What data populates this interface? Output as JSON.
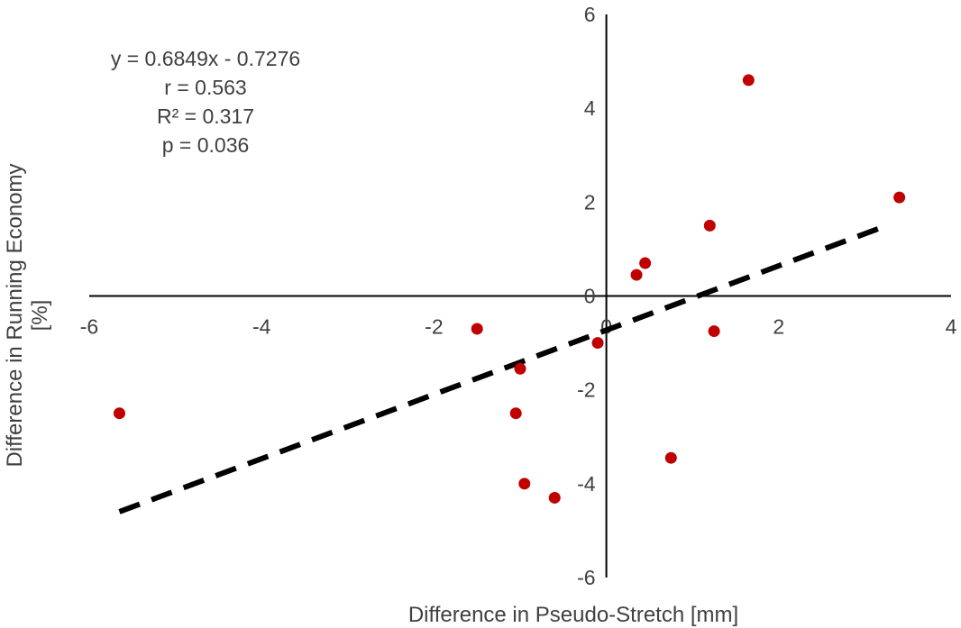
{
  "chart_data": {
    "type": "scatter",
    "title": "",
    "xlabel": "Difference in Pseudo-Stretch [mm]",
    "ylabel": "Difference in Running Economy [%]",
    "ylabel_lines": [
      "Difference in Running Economy",
      "[%]"
    ],
    "xlim": [
      -6,
      4
    ],
    "ylim": [
      -6,
      6
    ],
    "xticks": [
      -6,
      -4,
      -2,
      0,
      2,
      4
    ],
    "yticks": [
      -6,
      -4,
      -2,
      0,
      2,
      4,
      6
    ],
    "xtick_labels": [
      "-6",
      "-4",
      "-2",
      "0",
      "2",
      "4"
    ],
    "ytick_labels": [
      "-6",
      "-4",
      "-2",
      "0",
      "2",
      "4",
      "6"
    ],
    "grid": false,
    "point_color": "#c00000",
    "trendline_color": "#000000",
    "points": [
      {
        "x": -5.65,
        "y": -2.5
      },
      {
        "x": -1.5,
        "y": -0.7
      },
      {
        "x": -1.0,
        "y": -1.55
      },
      {
        "x": -1.05,
        "y": -2.5
      },
      {
        "x": -0.95,
        "y": -4.0
      },
      {
        "x": -0.6,
        "y": -4.3
      },
      {
        "x": -0.1,
        "y": -1.0
      },
      {
        "x": 0.35,
        "y": 0.45
      },
      {
        "x": 0.45,
        "y": 0.7
      },
      {
        "x": 0.75,
        "y": -3.45
      },
      {
        "x": 1.2,
        "y": 1.5
      },
      {
        "x": 1.25,
        "y": -0.75
      },
      {
        "x": 1.65,
        "y": 4.6
      },
      {
        "x": 3.4,
        "y": 2.1
      }
    ],
    "trendline": {
      "slope": 0.6849,
      "intercept": -0.7276,
      "x_start": -5.65,
      "x_end": 3.2,
      "style": "dashed"
    },
    "annotations": [
      "y = 0.6849x - 0.7276",
      "r = 0.563",
      "R² = 0.317",
      "p = 0.036"
    ]
  }
}
